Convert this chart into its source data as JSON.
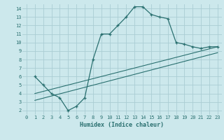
{
  "xlabel": "Humidex (Indice chaleur)",
  "ylabel": "",
  "background_color": "#cce8ec",
  "grid_color": "#aacdd4",
  "line_color": "#2a7070",
  "xlim": [
    -0.5,
    23.5
  ],
  "ylim": [
    1.5,
    14.5
  ],
  "xticks": [
    0,
    1,
    2,
    3,
    4,
    5,
    6,
    7,
    8,
    9,
    10,
    11,
    12,
    13,
    14,
    15,
    16,
    17,
    18,
    19,
    20,
    21,
    22,
    23
  ],
  "yticks": [
    2,
    3,
    4,
    5,
    6,
    7,
    8,
    9,
    10,
    11,
    12,
    13,
    14
  ],
  "line1_x": [
    1,
    2,
    3,
    4,
    5,
    6,
    7,
    8,
    9,
    10,
    11,
    12,
    13,
    14,
    15,
    16,
    17,
    18,
    19,
    20,
    21,
    22,
    23
  ],
  "line1_y": [
    6.0,
    5.0,
    4.0,
    3.5,
    2.0,
    2.5,
    3.5,
    8.0,
    11.0,
    11.0,
    12.0,
    13.0,
    14.2,
    14.2,
    13.3,
    13.0,
    12.8,
    10.0,
    9.8,
    9.5,
    9.3,
    9.5,
    9.5
  ],
  "line2_x": [
    1,
    23
  ],
  "line2_y": [
    4.0,
    9.5
  ],
  "line3_x": [
    1,
    23
  ],
  "line3_y": [
    3.2,
    8.8
  ],
  "marker": "+"
}
